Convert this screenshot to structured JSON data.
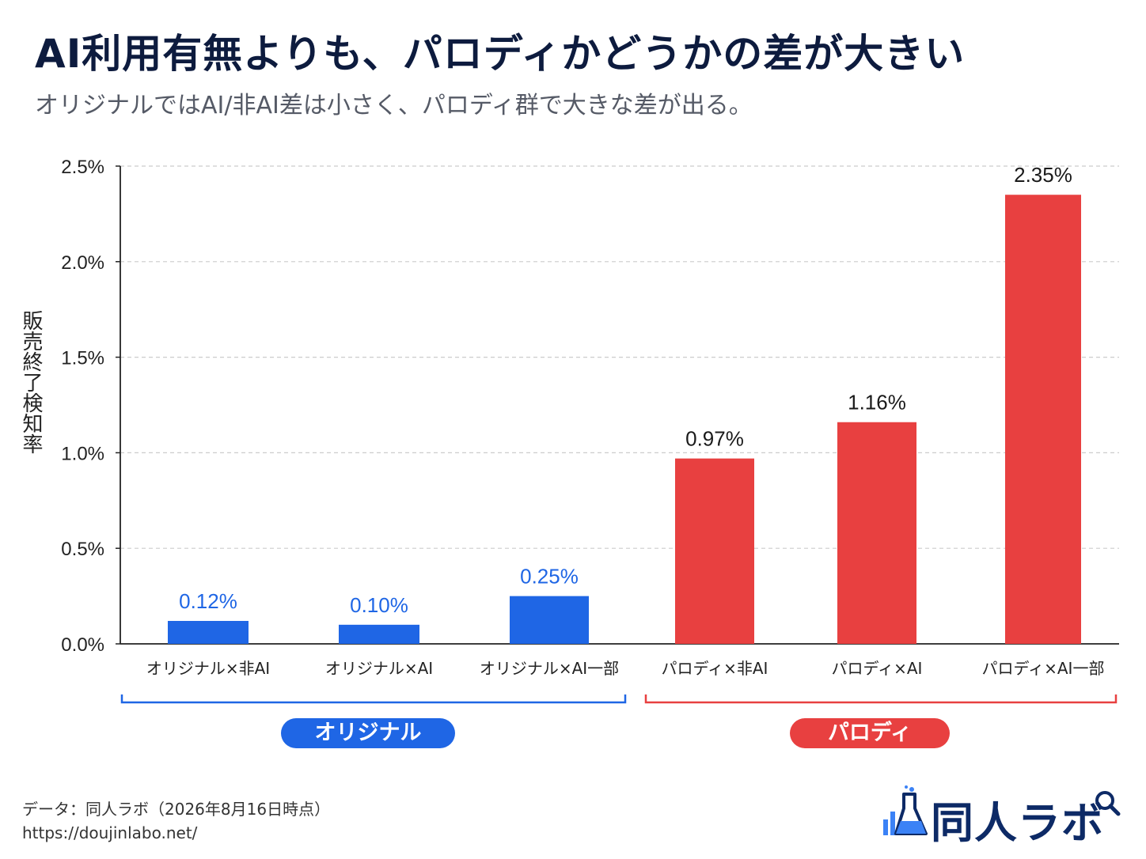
{
  "header": {
    "title": "AI利用有無よりも、パロディかどうかの差が大きい",
    "subtitle": "オリジナルではAI/非AI差は小さく、パロディ群で大きな差が出る。"
  },
  "colors": {
    "original": "#1f66e5",
    "parody": "#e84040",
    "axis": "#222222",
    "grid": "#cccccc"
  },
  "chart_data": {
    "type": "bar",
    "title": "AI利用有無よりも、パロディかどうかの差が大きい",
    "ylabel": "販売終了検知率",
    "xlabel": "",
    "ylim": [
      0,
      2.5
    ],
    "yticks": [
      "0.0%",
      "0.5%",
      "1.0%",
      "1.5%",
      "2.0%",
      "2.5%"
    ],
    "ytick_values": [
      0,
      0.5,
      1.0,
      1.5,
      2.0,
      2.5
    ],
    "grid": true,
    "categories": [
      "オリジナル×非AI",
      "オリジナル×AI",
      "オリジナル×AI一部",
      "パロディ×非AI",
      "パロディ×AI",
      "パロディ×AI一部"
    ],
    "values": [
      0.12,
      0.1,
      0.25,
      0.97,
      1.16,
      2.35
    ],
    "data_labels": [
      "0.12%",
      "0.10%",
      "0.25%",
      "0.97%",
      "1.16%",
      "2.35%"
    ],
    "bar_groups": [
      "original",
      "original",
      "original",
      "parody",
      "parody",
      "parody"
    ],
    "groups": [
      {
        "key": "original",
        "label": "オリジナル",
        "color": "#1f66e5"
      },
      {
        "key": "parody",
        "label": "パロディ",
        "color": "#e84040"
      }
    ]
  },
  "footer": {
    "source": "データ：同人ラボ（2026年8月16日時点）",
    "url": "https://doujinlabo.net/",
    "logo_text": "同人ラボ",
    "logo_icon": "flask-chart-icon"
  }
}
